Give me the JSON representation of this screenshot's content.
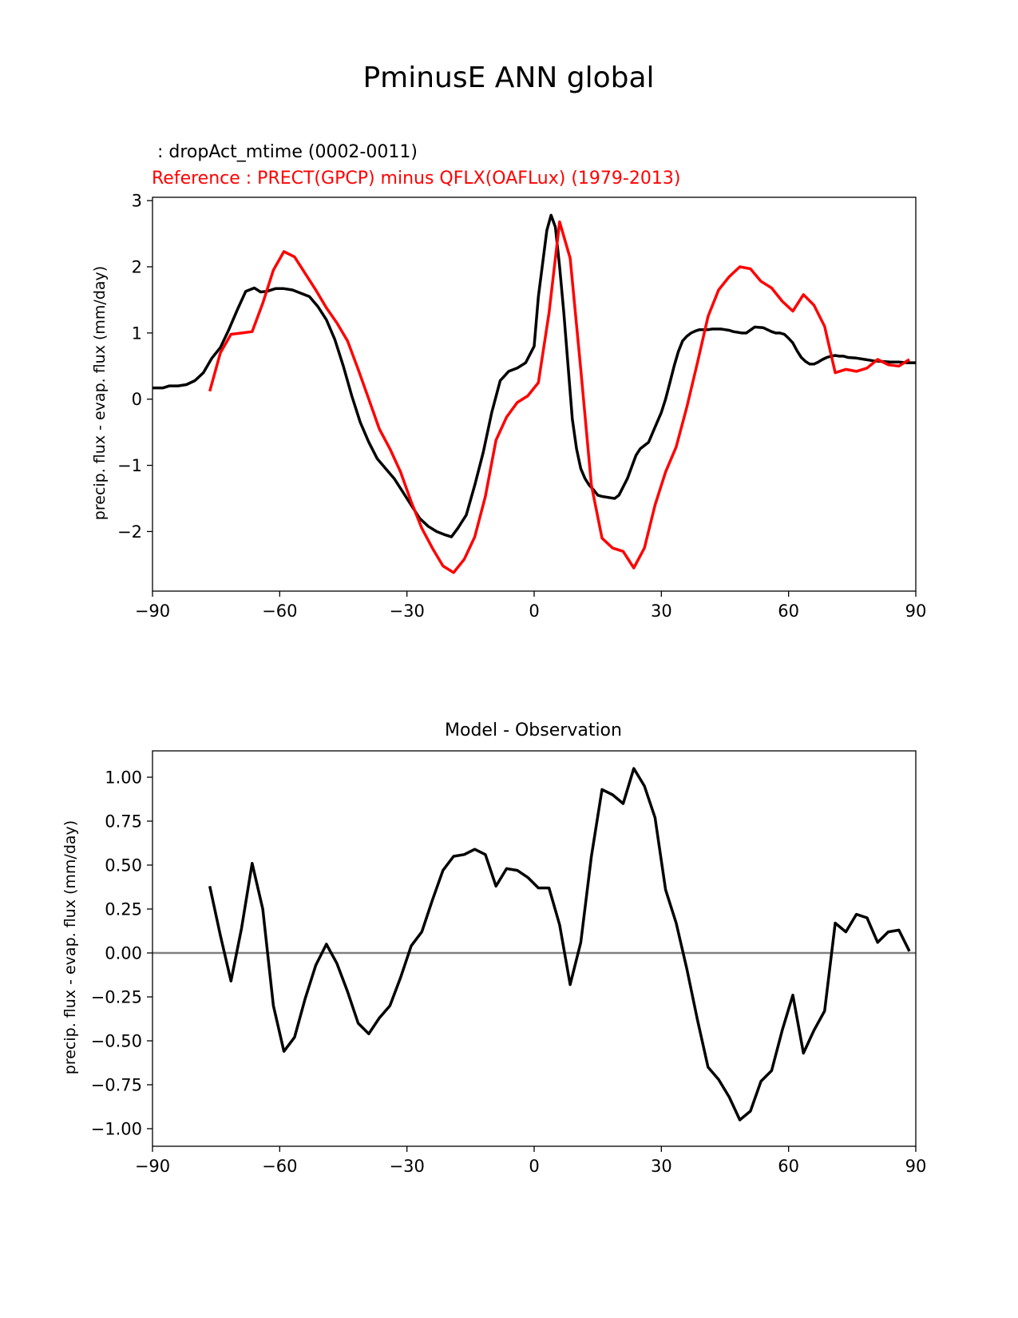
{
  "figure": {
    "title": "PminusE ANN global"
  },
  "colors": {
    "test": "#000000",
    "reference": "#ff0000",
    "zero_line": "#808080",
    "axes": "#000000"
  },
  "chart_data": [
    {
      "type": "line",
      "test_label": " : dropAct_mtime (0002-0011)",
      "reference_label": "Reference : PRECT(GPCP) minus QFLX(OAFLux) (1979-2013)",
      "xlabel": "",
      "ylabel": "precip. flux - evap. flux (mm/day)",
      "xlim": [
        -90,
        90
      ],
      "ylim": [
        -2.9,
        3.05
      ],
      "xticks": [
        -90,
        -60,
        -30,
        0,
        30,
        60,
        90
      ],
      "xtick_labels": [
        "−90",
        "−60",
        "−30",
        "0",
        "30",
        "60",
        "90"
      ],
      "yticks": [
        3,
        2,
        1,
        0,
        -1,
        -2
      ],
      "ytick_labels": [
        "3",
        "2",
        "1",
        "0",
        "−1",
        "−2"
      ],
      "series": [
        {
          "name": "test",
          "x": [
            -90,
            -87.5,
            -86,
            -84,
            -82,
            -80,
            -78,
            -76,
            -74,
            -72,
            -70,
            -68,
            -66,
            -64.5,
            -63,
            -61,
            -59,
            -57,
            -55,
            -53,
            -51,
            -49,
            -47,
            -45,
            -43,
            -41,
            -39,
            -37,
            -35,
            -33,
            -31,
            -29,
            -27,
            -25,
            -23,
            -21,
            -19.5,
            -18,
            -16,
            -14,
            -12,
            -10,
            -8,
            -6,
            -4,
            -2,
            0,
            1,
            2,
            3,
            4,
            5,
            6,
            7,
            8,
            9,
            10,
            11,
            12,
            13,
            14,
            15,
            16,
            17,
            18,
            19,
            20,
            22,
            24,
            25,
            26,
            27,
            28,
            29,
            30,
            31,
            32,
            33,
            34,
            35,
            36,
            37,
            38,
            39,
            40,
            41,
            42,
            43,
            44,
            45,
            46,
            47,
            48,
            49,
            50,
            52,
            54,
            56,
            57,
            58,
            59,
            60,
            61,
            62,
            63,
            64,
            65,
            66,
            67,
            68,
            69,
            70,
            71,
            72,
            73,
            74,
            76,
            78,
            80,
            82,
            84,
            86,
            88,
            90
          ],
          "y": [
            0.17,
            0.17,
            0.2,
            0.2,
            0.22,
            0.28,
            0.4,
            0.62,
            0.78,
            1.05,
            1.35,
            1.63,
            1.68,
            1.62,
            1.63,
            1.67,
            1.67,
            1.65,
            1.6,
            1.55,
            1.4,
            1.2,
            0.9,
            0.5,
            0.05,
            -0.35,
            -0.65,
            -0.9,
            -1.05,
            -1.2,
            -1.4,
            -1.6,
            -1.8,
            -1.92,
            -2.0,
            -2.05,
            -2.08,
            -1.95,
            -1.75,
            -1.3,
            -0.8,
            -0.2,
            0.28,
            0.42,
            0.47,
            0.55,
            0.8,
            1.55,
            2.05,
            2.55,
            2.78,
            2.6,
            2.0,
            1.3,
            0.5,
            -0.3,
            -0.75,
            -1.05,
            -1.2,
            -1.3,
            -1.37,
            -1.45,
            -1.47,
            -1.48,
            -1.49,
            -1.5,
            -1.45,
            -1.2,
            -0.85,
            -0.75,
            -0.7,
            -0.65,
            -0.5,
            -0.35,
            -0.2,
            0.0,
            0.25,
            0.5,
            0.72,
            0.88,
            0.95,
            1.0,
            1.03,
            1.05,
            1.05,
            1.05,
            1.06,
            1.06,
            1.06,
            1.05,
            1.04,
            1.02,
            1.01,
            1.0,
            1.0,
            1.09,
            1.08,
            1.02,
            1.0,
            1.0,
            0.98,
            0.92,
            0.85,
            0.73,
            0.63,
            0.57,
            0.53,
            0.53,
            0.56,
            0.6,
            0.63,
            0.65,
            0.66,
            0.65,
            0.65,
            0.63,
            0.62,
            0.6,
            0.58,
            0.57,
            0.56,
            0.56,
            0.55,
            0.55
          ]
        },
        {
          "name": "reference",
          "x": [
            -76.5,
            -74,
            -71.5,
            -69,
            -66.5,
            -64,
            -61.5,
            -59,
            -56.5,
            -54,
            -51.5,
            -49,
            -46.5,
            -44,
            -41.5,
            -39,
            -36.5,
            -34,
            -31.5,
            -29,
            -26.5,
            -24,
            -21.5,
            -19,
            -16.5,
            -14,
            -11.5,
            -9,
            -6.5,
            -4,
            -1.5,
            1,
            3.5,
            6,
            8.5,
            11,
            13.5,
            16,
            18.5,
            21,
            23.5,
            26,
            28.5,
            31,
            33.5,
            36,
            38.5,
            41,
            43.5,
            46,
            48.5,
            51,
            53.5,
            56,
            58.5,
            61,
            63.5,
            66,
            68.5,
            71,
            73.5,
            76,
            78.5,
            81,
            83.5,
            86,
            88.5
          ],
          "y": [
            0.12,
            0.7,
            0.98,
            1.0,
            1.02,
            1.45,
            1.95,
            2.23,
            2.15,
            1.9,
            1.65,
            1.38,
            1.15,
            0.88,
            0.45,
            0.0,
            -0.45,
            -0.75,
            -1.1,
            -1.55,
            -1.95,
            -2.25,
            -2.52,
            -2.62,
            -2.42,
            -2.08,
            -1.47,
            -0.62,
            -0.27,
            -0.05,
            0.05,
            0.25,
            1.3,
            2.68,
            2.13,
            0.45,
            -1.3,
            -2.1,
            -2.25,
            -2.3,
            -2.55,
            -2.25,
            -1.6,
            -1.1,
            -0.72,
            -0.12,
            0.55,
            1.25,
            1.65,
            1.85,
            2.0,
            1.97,
            1.78,
            1.68,
            1.48,
            1.33,
            1.58,
            1.42,
            1.1,
            0.4,
            0.45,
            0.42,
            0.47,
            0.6,
            0.52,
            0.5,
            0.6
          ]
        }
      ]
    },
    {
      "type": "line",
      "title": "Model - Observation",
      "xlabel": "",
      "ylabel": "precip. flux - evap. flux (mm/day)",
      "xlim": [
        -90,
        90
      ],
      "ylim": [
        -1.1,
        1.15
      ],
      "xticks": [
        -90,
        -60,
        -30,
        0,
        30,
        60,
        90
      ],
      "xtick_labels": [
        "−90",
        "−60",
        "−30",
        "0",
        "30",
        "60",
        "90"
      ],
      "yticks": [
        1.0,
        0.75,
        0.5,
        0.25,
        0.0,
        -0.25,
        -0.5,
        -0.75,
        -1.0
      ],
      "ytick_labels": [
        "1.00",
        "0.75",
        "0.50",
        "0.25",
        "0.00",
        "−0.25",
        "−0.50",
        "−0.75",
        "−1.00"
      ],
      "zero_line": 0,
      "series": [
        {
          "name": "difference",
          "x": [
            -76.5,
            -74,
            -71.5,
            -69,
            -66.5,
            -64,
            -61.5,
            -59,
            -56.5,
            -54,
            -51.5,
            -49,
            -46.5,
            -44,
            -41.5,
            -39,
            -36.5,
            -34,
            -31.5,
            -29,
            -26.5,
            -24,
            -21.5,
            -19,
            -16.5,
            -14,
            -11.5,
            -9,
            -6.5,
            -4,
            -1.5,
            1,
            3.5,
            6,
            8.5,
            11,
            13.5,
            16,
            18.5,
            21,
            23.5,
            26,
            28.5,
            31,
            33.5,
            36,
            38.5,
            41,
            43.5,
            46,
            48.5,
            51,
            53.5,
            56,
            58.5,
            61,
            63.5,
            66,
            68.5,
            71,
            73.5,
            76,
            78.5,
            81,
            83.5,
            86,
            88.5
          ],
          "y": [
            0.38,
            0.1,
            -0.16,
            0.14,
            0.51,
            0.25,
            -0.3,
            -0.56,
            -0.48,
            -0.26,
            -0.07,
            0.05,
            -0.06,
            -0.22,
            -0.4,
            -0.46,
            -0.37,
            -0.3,
            -0.14,
            0.04,
            0.12,
            0.3,
            0.47,
            0.55,
            0.56,
            0.59,
            0.56,
            0.38,
            0.48,
            0.47,
            0.43,
            0.37,
            0.37,
            0.16,
            -0.18,
            0.06,
            0.55,
            0.93,
            0.9,
            0.85,
            1.05,
            0.95,
            0.77,
            0.36,
            0.17,
            -0.09,
            -0.38,
            -0.65,
            -0.72,
            -0.82,
            -0.95,
            -0.9,
            -0.73,
            -0.67,
            -0.44,
            -0.24,
            -0.57,
            -0.44,
            -0.33,
            0.17,
            0.12,
            0.22,
            0.2,
            0.06,
            0.12,
            0.13,
            0.01
          ]
        }
      ]
    }
  ]
}
